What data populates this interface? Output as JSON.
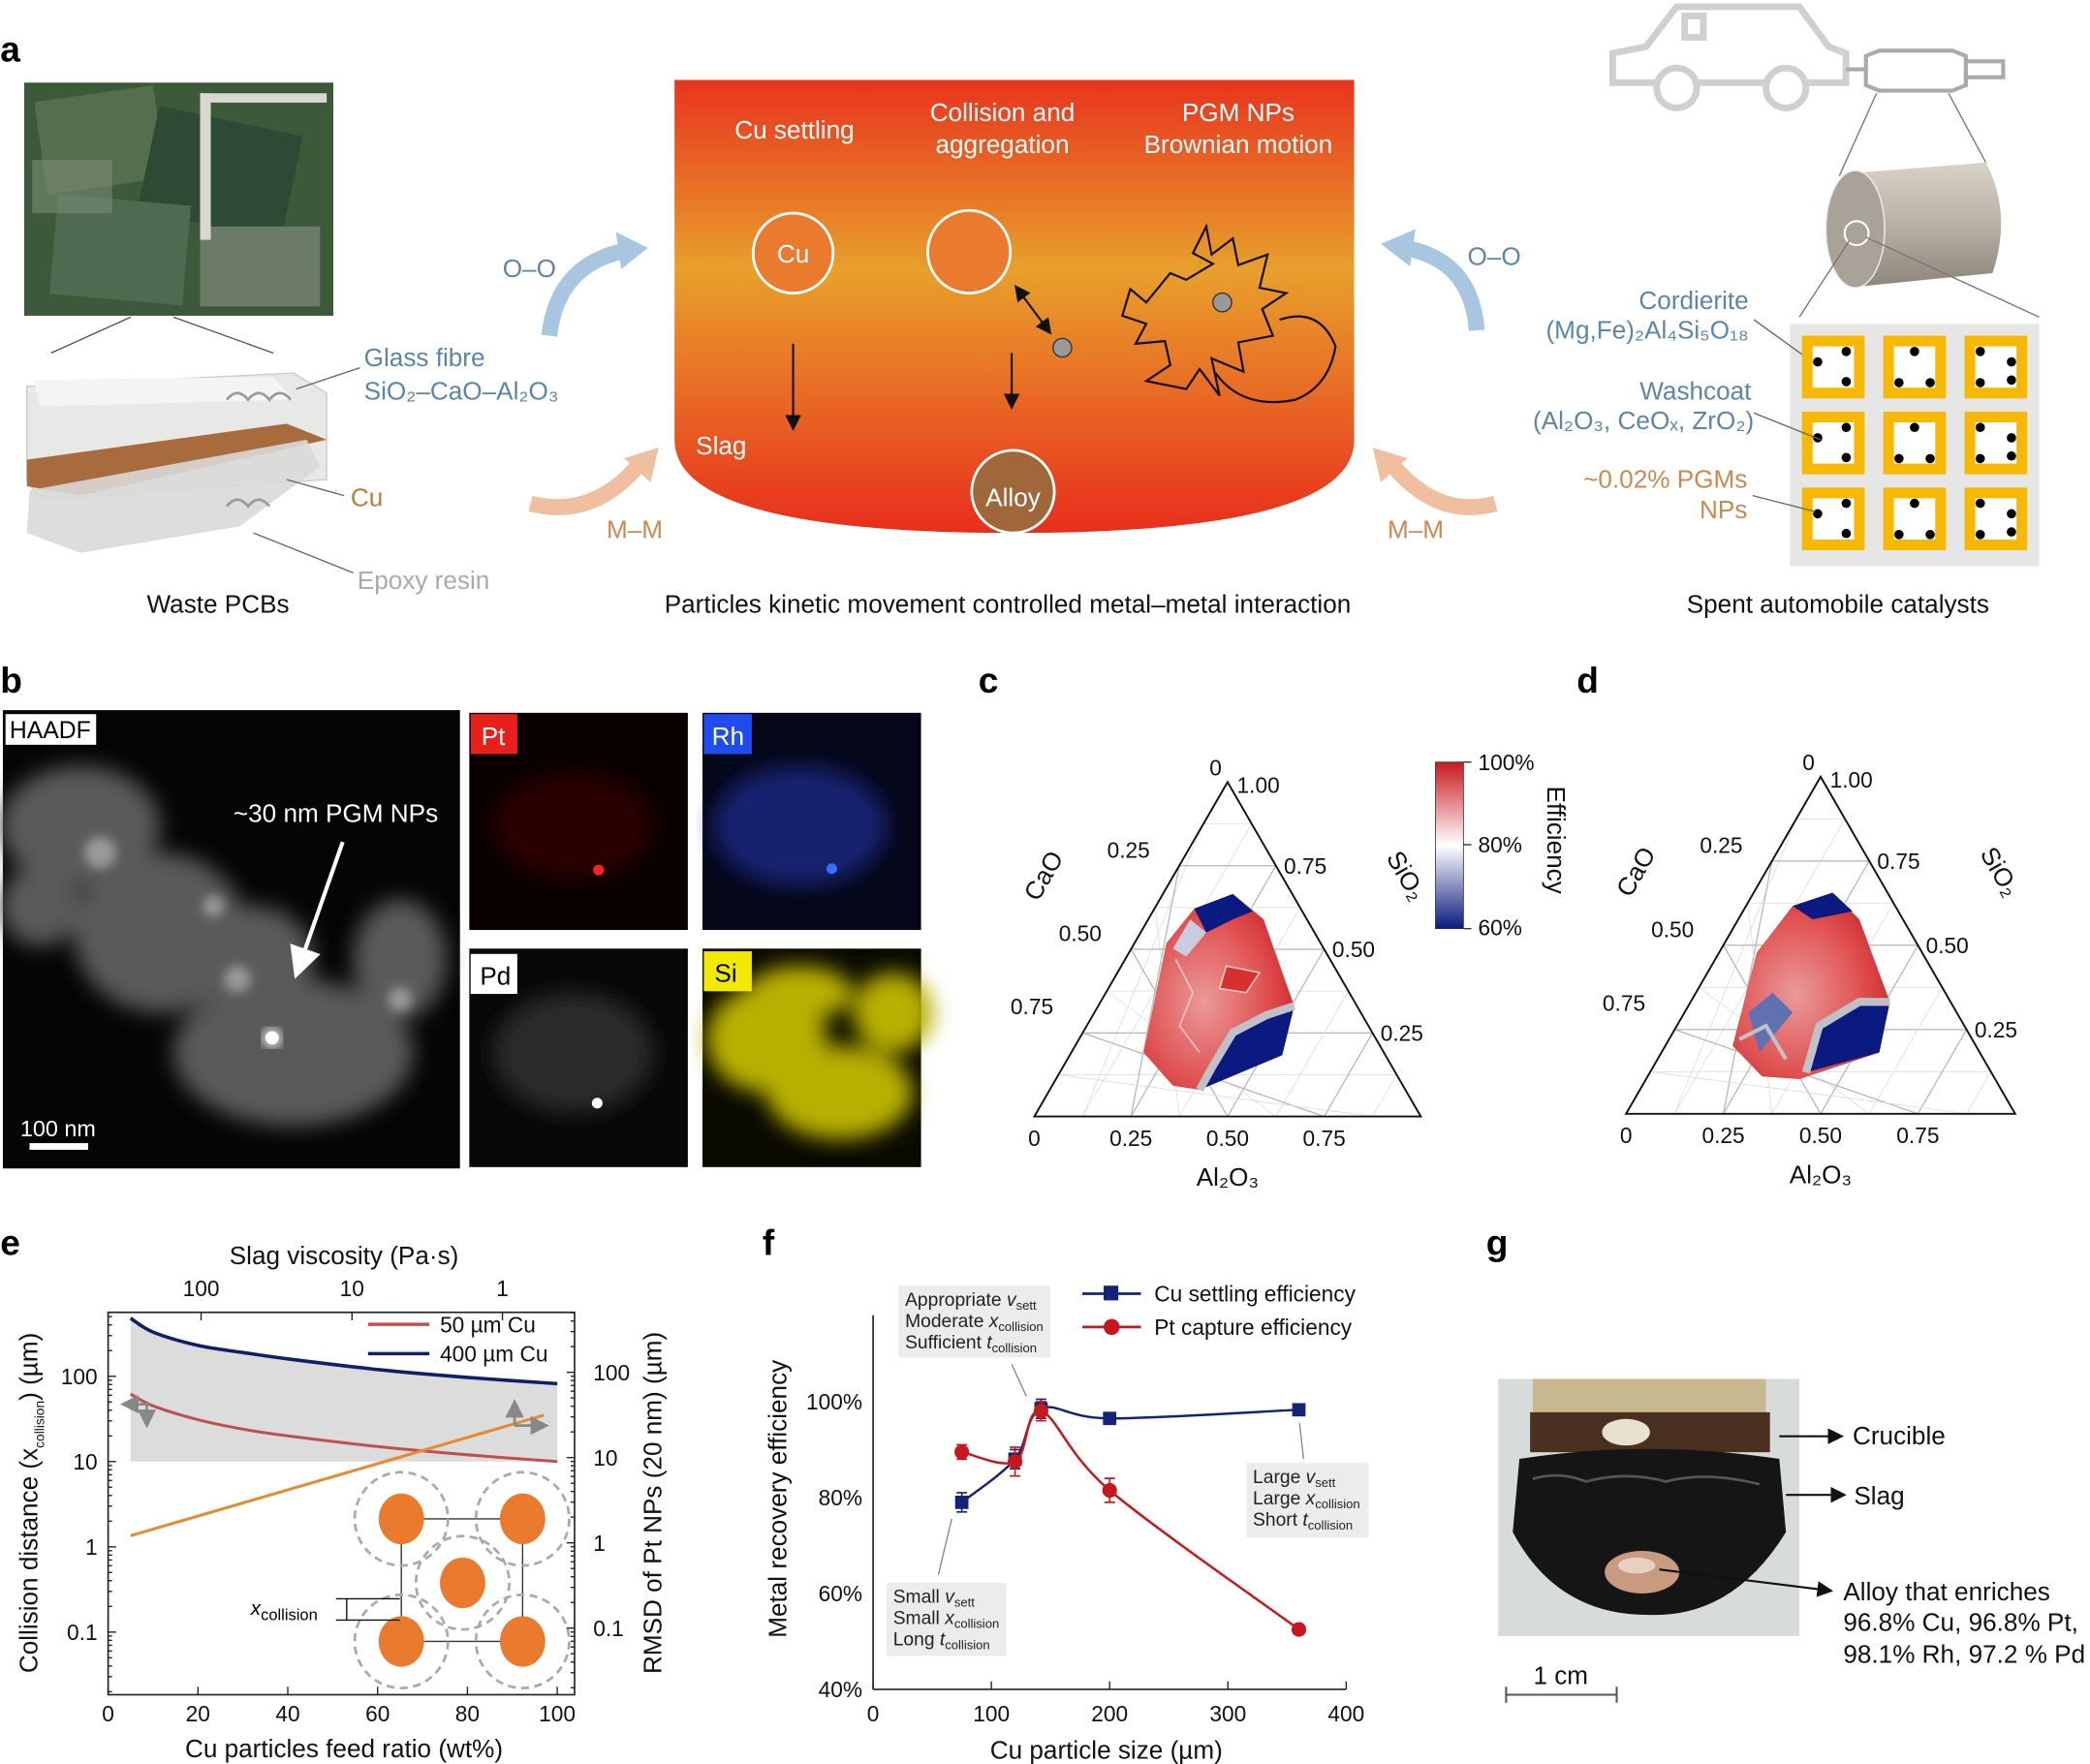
{
  "panel_labels": {
    "a": "a",
    "b": "b",
    "c": "c",
    "d": "d",
    "e": "e",
    "f": "f",
    "g": "g"
  },
  "colors": {
    "label_blue": "#5b86a8",
    "label_orange": "#c98a50",
    "crucible_top": "#e8381f",
    "crucible_mid": "#e8a22c",
    "cu_particle": "#ea7a2d",
    "alloy": "#a0683a",
    "catalyst_washcoat": "#f6b800",
    "pt_map": "#e8201c",
    "rh_map": "#1e4cf0",
    "si_map": "#f2e800",
    "cu_settling": "#13237a",
    "pt_capture": "#c8161d",
    "collision_50um": "#c0504d",
    "collision_400um": "#0f1f6e",
    "rmsd": "#e88a2e"
  },
  "panel_a": {
    "pcb": {
      "glass_fibre": "Glass fibre",
      "glass_formula": "SiO₂–CaO–Al₂O₃",
      "cu": "Cu",
      "epoxy": "Epoxy resin",
      "caption": "Waste PCBs"
    },
    "left_oo": "O–O",
    "left_mm": "M–M",
    "right_oo": "O–O",
    "right_mm": "M–M",
    "crucible": {
      "cu_settling": "Cu settling",
      "collision_1": "Collision and",
      "collision_2": "aggregation",
      "pgm_1": "PGM NPs",
      "pgm_2": "Brownian motion",
      "cu": "Cu",
      "slag": "Slag",
      "alloy": "Alloy"
    },
    "caption": "Particles kinetic movement controlled metal–metal interaction",
    "catalyst": {
      "cordierite": "Cordierite",
      "cordierite_formula": "(Mg,Fe)₂Al₄Si₅O₁₈",
      "washcoat": "Washcoat",
      "washcoat_formula": "(Al₂O₃, CeOₓ, ZrO₂)",
      "pgm_1": "~0.02% PGMs",
      "pgm_2": "NPs",
      "caption": "Spent automobile catalysts"
    }
  },
  "panel_b": {
    "haadf": "HAADF",
    "annotation": "~30 nm PGM NPs",
    "scale": "100 nm",
    "maps": {
      "pt": "Pt",
      "rh": "Rh",
      "pd": "Pd",
      "si": "Si"
    }
  },
  "panel_c": {
    "axes": {
      "left": "CaO",
      "right": "SiO₂",
      "bottom": "Al₂O₃"
    },
    "top_ticks": [
      "0",
      "1.00"
    ],
    "left_ticks": [
      "0.25",
      "0.50",
      "0.75"
    ],
    "right_ticks": [
      "0.75",
      "0.50",
      "0.25"
    ],
    "bottom_ticks": [
      "0",
      "0.25",
      "0.50",
      "0.75"
    ],
    "colorbar": {
      "title": "Efficiency",
      "ticks": [
        "100%",
        "80%",
        "60%"
      ],
      "range": [
        60,
        100
      ]
    }
  },
  "panel_d": {
    "axes": {
      "left": "CaO",
      "right": "SiO₂",
      "bottom": "Al₂O₃"
    },
    "top_ticks": [
      "0",
      "1.00"
    ],
    "left_ticks": [
      "0.25",
      "0.50",
      "0.75"
    ],
    "right_ticks": [
      "0.75",
      "0.50",
      "0.25"
    ],
    "bottom_ticks": [
      "0",
      "0.25",
      "0.50",
      "0.75"
    ]
  },
  "panel_g": {
    "crucible": "Crucible",
    "slag": "Slag",
    "alloy_1": "Alloy that enriches",
    "alloy_2": "96.8% Cu, 96.8% Pt,",
    "alloy_3": "98.1% Rh, 97.2 % Pd",
    "scale": "1 cm"
  },
  "chart_data": [
    {
      "panel": "e",
      "type": "line",
      "xlabel": "Cu particles feed ratio (wt%)",
      "ylabel_main": "Collision distance (x",
      "ylabel_sub": "collision",
      "ylabel_end": ") (µm)",
      "y2label": "RMSD of Pt NPs (20 nm) (µm)",
      "top_xlabel": "Slag viscosity (Pa·s)",
      "xlim": [
        0,
        104
      ],
      "ylim": [
        0.02,
        560
      ],
      "yscale": "log",
      "x_ticks": [
        "0",
        "20",
        "40",
        "60",
        "80",
        "100"
      ],
      "y_ticks": [
        "100",
        "10",
        "1",
        "0.1"
      ],
      "y2_ticks": [
        "100",
        "10",
        "1",
        "0.1"
      ],
      "top_ticks": [
        {
          "label": "100",
          "feed_ratio": 20.7
        },
        {
          "label": "10",
          "feed_ratio": 54.3
        },
        {
          "label": "1",
          "feed_ratio": 87.8
        }
      ],
      "legend_position": "top-right",
      "series": [
        {
          "name": "50 µm Cu",
          "axis": "left",
          "x": [
            5,
            10,
            20,
            30,
            40,
            60,
            80,
            100
          ],
          "y": [
            62,
            45,
            31,
            24,
            20,
            15,
            12,
            10
          ]
        },
        {
          "name": "400 µm Cu",
          "axis": "left",
          "x": [
            5,
            10,
            20,
            30,
            40,
            60,
            80,
            100
          ],
          "y": [
            480,
            330,
            230,
            190,
            160,
            120,
            97,
            82
          ]
        },
        {
          "axis": "right",
          "x": [
            5,
            97
          ],
          "y": [
            1.35,
            35
          ]
        }
      ],
      "shaded_band": {
        "between": "400 µm Cu curve and 10",
        "x_range": [
          5,
          100
        ]
      },
      "inset_label_main": "x",
      "inset_label_sub": "collision"
    },
    {
      "panel": "f",
      "type": "line",
      "xlabel": "Cu particle size (µm)",
      "ylabel": "Metal recovery efficiency",
      "xlim": [
        0,
        400
      ],
      "ylim": [
        40,
        118
      ],
      "x_ticks": [
        "0",
        "100",
        "200",
        "300",
        "400"
      ],
      "y_ticks": [
        "40%",
        "60%",
        "80%",
        "100%"
      ],
      "legend_position": "top-right",
      "series": [
        {
          "name": "Cu settling efficiency",
          "marker": "square",
          "x": [
            75,
            120,
            142,
            200,
            360
          ],
          "y": [
            79,
            88,
            98.5,
            96.5,
            98.3
          ],
          "err": [
            2,
            2,
            2,
            1,
            1
          ]
        },
        {
          "name": "Pt capture efficiency",
          "marker": "circle",
          "x": [
            75,
            120,
            142,
            200,
            360
          ],
          "y": [
            89.5,
            87.5,
            98,
            81.5,
            52.5
          ],
          "err": [
            1.5,
            3,
            2,
            2.5,
            1
          ]
        }
      ],
      "annotations": [
        {
          "lines": [
            {
              "pre": "Appropriate ",
              "var": "v",
              "sub": "sett"
            },
            {
              "pre": "Moderate ",
              "var": "x",
              "sub": "collision"
            },
            {
              "pre": "Sufficient ",
              "var": "t",
              "sub": "collision"
            }
          ]
        },
        {
          "lines": [
            {
              "pre": "Large ",
              "var": "v",
              "sub": "sett"
            },
            {
              "pre": "Large ",
              "var": "x",
              "sub": "collision"
            },
            {
              "pre": "Short ",
              "var": "t",
              "sub": "collision"
            }
          ]
        },
        {
          "lines": [
            {
              "pre": "Small ",
              "var": "v",
              "sub": "sett"
            },
            {
              "pre": "Small ",
              "var": "x",
              "sub": "collision"
            },
            {
              "pre": "Long ",
              "var": "t",
              "sub": "collision"
            }
          ]
        }
      ]
    }
  ]
}
